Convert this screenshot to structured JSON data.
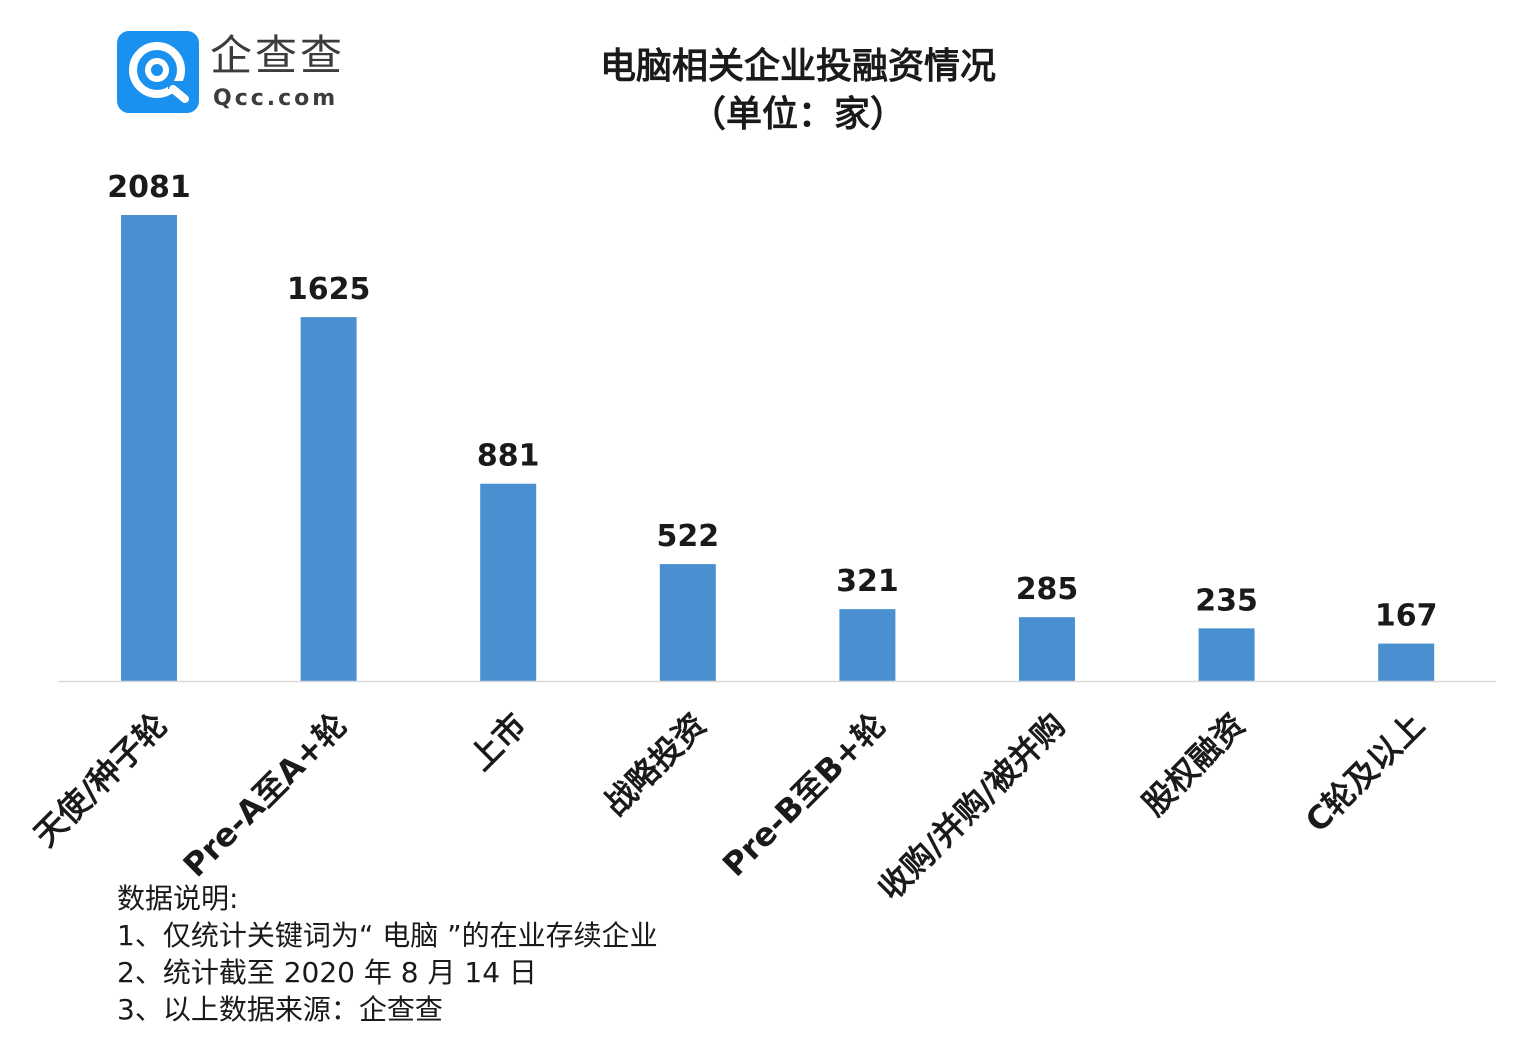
{
  "logo": {
    "name": "企查查",
    "domain": "Qcc.com"
  },
  "chart_data": {
    "type": "bar",
    "title": "电脑相关企业投融资情况",
    "subtitle": "（单位：家）",
    "categories": [
      "天使/种子轮",
      "Pre-A至A+轮",
      "上市",
      "战略投资",
      "Pre-B至B+轮",
      "收购/并购/被并购",
      "股权融资",
      "C轮及以上"
    ],
    "values": [
      2081,
      1625,
      881,
      522,
      321,
      285,
      235,
      167
    ],
    "xlabel": "",
    "ylabel": "",
    "ylim": [
      0,
      2081
    ],
    "grid": false,
    "legend": "none",
    "show_data_labels": true,
    "bar_color": "#4a8fd0",
    "axis_color": "#d9d9d9"
  },
  "notes": {
    "heading": "数据说明:",
    "lines": [
      "1、仅统计关键词为“ 电脑 ”的在业存续企业",
      "2、统计截至 2020 年 8 月 14 日",
      "3、以上数据来源：企查查"
    ]
  }
}
